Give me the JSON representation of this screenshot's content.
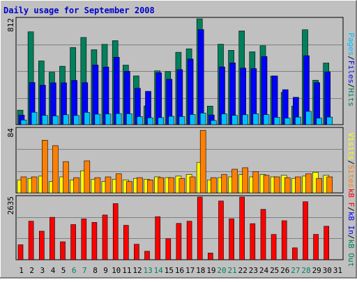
{
  "title": "Daily usage for September 2008",
  "colors": {
    "bg": "#c0c0c0",
    "outer": "#e0e0e0",
    "grid": "#808080",
    "hits": "#00805c",
    "files": "#0000ff",
    "pages": "#00c0ff",
    "visits": "#ffff00",
    "sites": "#ff8000",
    "kbin": "#ff0000",
    "kbout": "#00805c",
    "title": "#0000cc",
    "day_normal": "#000000",
    "day_weekend": "#00805c"
  },
  "legends": {
    "top": [
      {
        "text": "Pages",
        "color": "#00c0ff"
      },
      {
        "text": "/",
        "color": "#000000"
      },
      {
        "text": "Files",
        "color": "#0000ff"
      },
      {
        "text": "/",
        "color": "#000000"
      },
      {
        "text": "Hits",
        "color": "#00805c"
      }
    ],
    "mid": [
      {
        "text": "Visits",
        "color": "#ffff00"
      },
      {
        "text": "/",
        "color": "#000000"
      },
      {
        "text": "Sites",
        "color": "#ff8000"
      }
    ],
    "bot": [
      {
        "text": "kB F",
        "color": "#ff0000"
      },
      {
        "text": "/",
        "color": "#000000"
      },
      {
        "text": "kB In",
        "color": "#0000ff"
      },
      {
        "text": "/",
        "color": "#000000"
      },
      {
        "text": "kB Out",
        "color": "#00805c"
      }
    ]
  },
  "chart_data": {
    "type": "bar",
    "title": "Daily usage for September 2008",
    "categories": [
      "1",
      "2",
      "3",
      "4",
      "5",
      "6",
      "7",
      "8",
      "9",
      "10",
      "11",
      "12",
      "13",
      "14",
      "15",
      "16",
      "17",
      "18",
      "19",
      "20",
      "21",
      "22",
      "23",
      "24",
      "25",
      "26",
      "27",
      "28",
      "29",
      "30",
      "31"
    ],
    "weekend_days": [
      "6",
      "7",
      "13",
      "14",
      "20",
      "21",
      "27",
      "28"
    ],
    "panels": [
      {
        "name": "hits-files-pages",
        "ymax_label": "812",
        "ymax": 812,
        "grid": true,
        "series": [
          {
            "name": "Hits",
            "color": "#00805c",
            "values": [
              111,
              712,
              489,
              403,
              448,
              592,
              669,
              575,
              616,
              644,
              457,
              374,
              143,
              413,
              407,
              555,
              582,
              812,
              142,
              617,
              570,
              719,
              559,
              605,
              373,
              248,
              142,
              728,
              341,
              473,
              0
            ]
          },
          {
            "name": "Files",
            "color": "#0000ff",
            "values": [
              73,
              323,
              303,
              321,
              321,
              339,
              322,
              458,
              442,
              517,
              409,
              279,
              256,
              398,
              348,
              422,
              503,
              729,
              74,
              443,
              474,
              434,
              430,
              523,
              374,
              268,
              210,
              529,
              322,
              405,
              0
            ]
          },
          {
            "name": "Pages",
            "color": "#00c0ff",
            "values": [
              36,
              95,
              71,
              67,
              76,
              70,
              94,
              80,
              82,
              85,
              84,
              62,
              53,
              54,
              64,
              62,
              78,
              89,
              32,
              83,
              71,
              76,
              84,
              77,
              56,
              50,
              58,
              102,
              50,
              58,
              0
            ]
          }
        ]
      },
      {
        "name": "visits-sites",
        "ymax_label": "84",
        "ymax": 84,
        "grid": true,
        "series": [
          {
            "name": "Visits",
            "color": "#ffff00",
            "values": [
              17,
              19,
              22,
              15,
              21,
              17,
              29,
              18,
              15,
              18,
              17,
              19,
              18,
              21,
              20,
              22,
              24,
              40,
              17,
              20,
              21,
              24,
              21,
              24,
              21,
              23,
              19,
              22,
              27,
              23,
              0
            ]
          },
          {
            "name": "Sites",
            "color": "#ff8000",
            "values": [
              21,
              21,
              69,
              62,
              41,
              20,
              42,
              20,
              21,
              25,
              15,
              20,
              17,
              20,
              20,
              19,
              21,
              82,
              20,
              24,
              31,
              33,
              28,
              23,
              21,
              20,
              21,
              25,
              19,
              21,
              0
            ]
          }
        ]
      },
      {
        "name": "kbytes",
        "ymax_label": "2635",
        "ymax": 2635,
        "grid": true,
        "series": [
          {
            "name": "kB F",
            "color": "#ff0000",
            "values": [
              629,
              1620,
              1199,
              1784,
              755,
              1479,
              1718,
              1569,
              1879,
              2360,
              1446,
              650,
              358,
              1808,
              883,
              1527,
              1620,
              2635,
              282,
              2467,
              1722,
              2635,
              1517,
              2116,
              1063,
              1640,
              500,
              2438,
              1066,
              1408,
              0
            ]
          }
        ]
      }
    ]
  }
}
